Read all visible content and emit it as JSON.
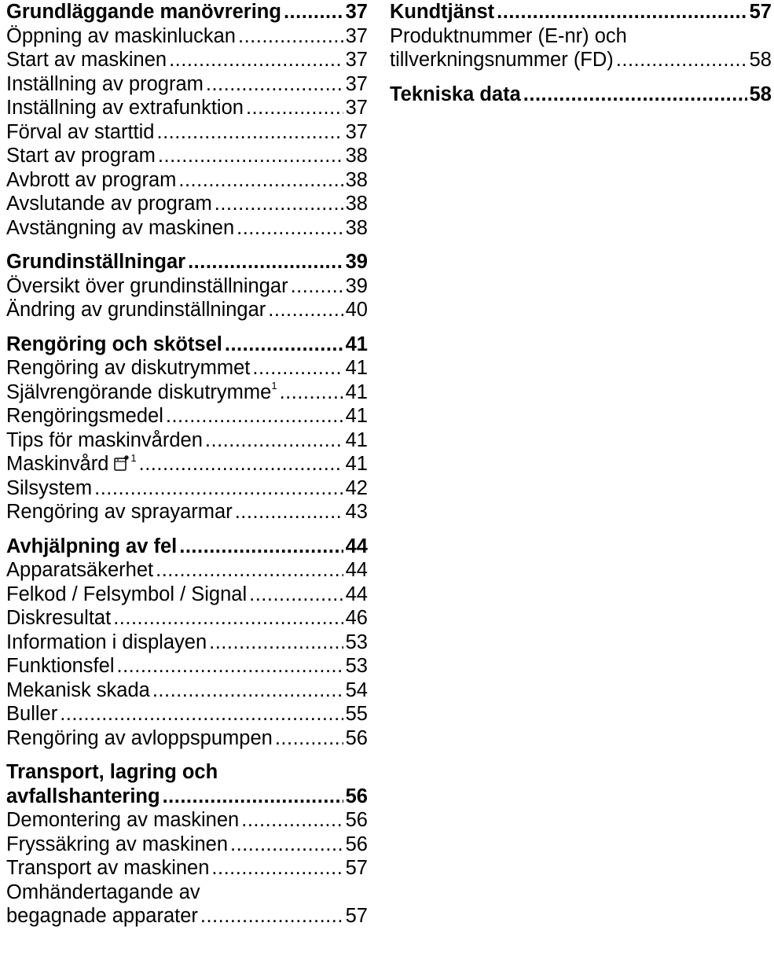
{
  "left": {
    "s1": {
      "heading": {
        "label": "Grundläggande manövrering",
        "page": "37"
      },
      "items": [
        {
          "label": "Öppning av maskinluckan",
          "page": "37"
        },
        {
          "label": "Start av maskinen",
          "page": "37"
        },
        {
          "label": "Inställning av program",
          "page": "37"
        },
        {
          "label": "Inställning av extrafunktion",
          "page": "37"
        },
        {
          "label": "Förval av starttid",
          "page": "37"
        },
        {
          "label": "Start av program",
          "page": "38"
        },
        {
          "label": "Avbrott av program",
          "page": "38"
        },
        {
          "label": "Avslutande av program",
          "page": "38"
        },
        {
          "label": "Avstängning av maskinen",
          "page": "38"
        }
      ]
    },
    "s2": {
      "heading": {
        "label": "Grundinställningar",
        "page": "39"
      },
      "items": [
        {
          "label": "Översikt över grundinställningar",
          "page": "39"
        },
        {
          "label": "Ändring av grundinställningar",
          "page": "40"
        }
      ]
    },
    "s3": {
      "heading": {
        "label": "Rengöring och skötsel",
        "page": "41"
      },
      "items": [
        {
          "label": "Rengöring av diskutrymmet",
          "page": "41"
        },
        {
          "label": "Självrengörande diskutrymme",
          "sup": "1",
          "page": "41"
        },
        {
          "label": "Rengöringsmedel",
          "page": "41"
        },
        {
          "label": "Tips för maskinvården",
          "page": "41"
        },
        {
          "label": "Maskinvård",
          "icon": "machine-care-icon",
          "sup": "1",
          "page": "41"
        },
        {
          "label": "Silsystem",
          "page": "42"
        },
        {
          "label": "Rengöring av sprayarmar",
          "page": "43"
        }
      ]
    },
    "s4": {
      "heading": {
        "label": "Avhjälpning av fel",
        "page": "44"
      },
      "items": [
        {
          "label": "Apparatsäkerhet",
          "page": "44"
        },
        {
          "label": "Felkod / Felsymbol / Signal",
          "page": "44"
        },
        {
          "label": "Diskresultat",
          "page": "46"
        },
        {
          "label": "Information i displayen",
          "page": "53"
        },
        {
          "label": "Funktionsfel",
          "page": "53"
        },
        {
          "label": "Mekanisk skada",
          "page": "54"
        },
        {
          "label": "Buller",
          "page": "55"
        },
        {
          "label": "Rengöring av avloppspumpen",
          "page": "56"
        }
      ]
    },
    "s5": {
      "heading_line1": "Transport, lagring och",
      "heading": {
        "label": "avfallshantering",
        "page": "56"
      },
      "items": [
        {
          "label": "Demontering av maskinen",
          "page": "56"
        },
        {
          "label": "Fryssäkring av maskinen",
          "page": "56"
        },
        {
          "label": "Transport av maskinen",
          "page": "57"
        }
      ],
      "last_line1": "Omhändertagande av",
      "last": {
        "label": "begagnade apparater",
        "page": "57"
      }
    }
  },
  "right": {
    "s1": {
      "heading": {
        "label": "Kundtjänst",
        "page": "57"
      },
      "item_line1": "Produktnummer (E-nr) och",
      "item": {
        "label": "tillverkningsnummer (FD)",
        "page": "58"
      }
    },
    "s2": {
      "heading": {
        "label": "Tekniska data",
        "page": "58"
      }
    }
  }
}
